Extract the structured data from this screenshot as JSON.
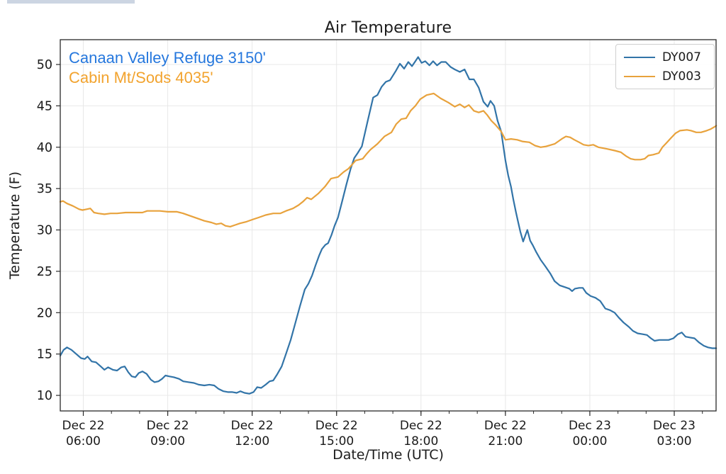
{
  "title": "Air Temperature",
  "axes": {
    "x_label": "Date/Time (UTC)",
    "y_label": "Temperature (F)",
    "x_ticks": [
      {
        "t": 6,
        "date": "Dec 22",
        "time": "06:00"
      },
      {
        "t": 9,
        "date": "Dec 22",
        "time": "09:00"
      },
      {
        "t": 12,
        "date": "Dec 22",
        "time": "12:00"
      },
      {
        "t": 15,
        "date": "Dec 22",
        "time": "15:00"
      },
      {
        "t": 18,
        "date": "Dec 22",
        "time": "18:00"
      },
      {
        "t": 21,
        "date": "Dec 22",
        "time": "21:00"
      },
      {
        "t": 24,
        "date": "Dec 23",
        "time": "00:00"
      },
      {
        "t": 27,
        "date": "Dec 23",
        "time": "03:00"
      }
    ],
    "y_ticks": [
      10,
      15,
      20,
      25,
      30,
      35,
      40,
      45,
      50
    ]
  },
  "annotations": [
    {
      "text": "Canaan Valley Refuge 3150'",
      "color": "#2577dd"
    },
    {
      "text": "Cabin Mt/Sods 4035'",
      "color": "#f2a32e"
    }
  ],
  "legend": {
    "entries": [
      {
        "label": "DY007",
        "color": "#3274a8"
      },
      {
        "label": "DY003",
        "color": "#e8a23c"
      }
    ]
  },
  "colors": {
    "grid": "#e8e8e8",
    "spine": "#2a2a2a",
    "tick_text": "#1a1a1a"
  },
  "chart_data": {
    "type": "line",
    "title": "Air Temperature",
    "xlabel": "Date/Time (UTC)",
    "ylabel": "Temperature (F)",
    "x_unit": "hours since Dec 22 00:00 UTC",
    "xlim": [
      5.181,
      28.486
    ],
    "ylim": [
      8.12,
      53.0
    ],
    "grid": true,
    "legend_position": "upper right",
    "x_minor_tick_step_hours": 1,
    "series": [
      {
        "name": "DY007",
        "station": "Canaan Valley Refuge 3150'",
        "color": "#3274a8",
        "points": [
          [
            5.18,
            14.8
          ],
          [
            5.3,
            15.5
          ],
          [
            5.42,
            15.8
          ],
          [
            5.58,
            15.5
          ],
          [
            5.75,
            15.0
          ],
          [
            5.92,
            14.5
          ],
          [
            6.05,
            14.4
          ],
          [
            6.15,
            14.7
          ],
          [
            6.3,
            14.1
          ],
          [
            6.45,
            14.0
          ],
          [
            6.62,
            13.5
          ],
          [
            6.75,
            13.1
          ],
          [
            6.88,
            13.4
          ],
          [
            7.05,
            13.1
          ],
          [
            7.2,
            13.0
          ],
          [
            7.35,
            13.4
          ],
          [
            7.47,
            13.5
          ],
          [
            7.6,
            12.8
          ],
          [
            7.72,
            12.3
          ],
          [
            7.85,
            12.2
          ],
          [
            7.97,
            12.7
          ],
          [
            8.1,
            12.9
          ],
          [
            8.25,
            12.6
          ],
          [
            8.4,
            11.9
          ],
          [
            8.53,
            11.6
          ],
          [
            8.67,
            11.7
          ],
          [
            8.8,
            12.0
          ],
          [
            8.92,
            12.4
          ],
          [
            9.05,
            12.3
          ],
          [
            9.22,
            12.2
          ],
          [
            9.4,
            12.0
          ],
          [
            9.55,
            11.7
          ],
          [
            9.75,
            11.6
          ],
          [
            9.93,
            11.5
          ],
          [
            10.1,
            11.3
          ],
          [
            10.3,
            11.2
          ],
          [
            10.48,
            11.3
          ],
          [
            10.65,
            11.2
          ],
          [
            10.8,
            10.8
          ],
          [
            10.98,
            10.5
          ],
          [
            11.15,
            10.4
          ],
          [
            11.3,
            10.4
          ],
          [
            11.45,
            10.3
          ],
          [
            11.58,
            10.5
          ],
          [
            11.73,
            10.3
          ],
          [
            11.9,
            10.2
          ],
          [
            12.05,
            10.4
          ],
          [
            12.18,
            11.0
          ],
          [
            12.32,
            10.9
          ],
          [
            12.48,
            11.3
          ],
          [
            12.62,
            11.7
          ],
          [
            12.75,
            11.8
          ],
          [
            12.88,
            12.5
          ],
          [
            13.05,
            13.5
          ],
          [
            13.2,
            15.0
          ],
          [
            13.37,
            16.7
          ],
          [
            13.53,
            18.7
          ],
          [
            13.7,
            20.8
          ],
          [
            13.87,
            22.8
          ],
          [
            14.0,
            23.5
          ],
          [
            14.13,
            24.5
          ],
          [
            14.25,
            25.7
          ],
          [
            14.38,
            26.9
          ],
          [
            14.48,
            27.7
          ],
          [
            14.6,
            28.2
          ],
          [
            14.7,
            28.4
          ],
          [
            14.82,
            29.4
          ],
          [
            14.93,
            30.5
          ],
          [
            15.05,
            31.5
          ],
          [
            15.2,
            33.5
          ],
          [
            15.35,
            35.5
          ],
          [
            15.5,
            37.4
          ],
          [
            15.63,
            38.7
          ],
          [
            15.75,
            39.3
          ],
          [
            15.9,
            40.1
          ],
          [
            16.1,
            43.1
          ],
          [
            16.3,
            46.0
          ],
          [
            16.45,
            46.3
          ],
          [
            16.6,
            47.3
          ],
          [
            16.75,
            47.9
          ],
          [
            16.9,
            48.1
          ],
          [
            17.1,
            49.2
          ],
          [
            17.25,
            50.1
          ],
          [
            17.4,
            49.5
          ],
          [
            17.55,
            50.3
          ],
          [
            17.68,
            49.8
          ],
          [
            17.8,
            50.4
          ],
          [
            17.9,
            50.9
          ],
          [
            18.02,
            50.2
          ],
          [
            18.15,
            50.4
          ],
          [
            18.3,
            49.9
          ],
          [
            18.43,
            50.4
          ],
          [
            18.57,
            49.9
          ],
          [
            18.72,
            50.3
          ],
          [
            18.88,
            50.3
          ],
          [
            19.05,
            49.7
          ],
          [
            19.2,
            49.4
          ],
          [
            19.38,
            49.1
          ],
          [
            19.55,
            49.4
          ],
          [
            19.72,
            48.2
          ],
          [
            19.88,
            48.2
          ],
          [
            20.05,
            47.2
          ],
          [
            20.22,
            45.5
          ],
          [
            20.37,
            44.9
          ],
          [
            20.47,
            45.6
          ],
          [
            20.6,
            45.0
          ],
          [
            20.72,
            43.2
          ],
          [
            20.85,
            41.9
          ],
          [
            21.0,
            38.4
          ],
          [
            21.1,
            36.6
          ],
          [
            21.2,
            35.2
          ],
          [
            21.28,
            33.7
          ],
          [
            21.37,
            32.2
          ],
          [
            21.45,
            31.0
          ],
          [
            21.53,
            29.8
          ],
          [
            21.63,
            28.6
          ],
          [
            21.78,
            30.0
          ],
          [
            21.88,
            28.7
          ],
          [
            21.98,
            28.1
          ],
          [
            22.1,
            27.3
          ],
          [
            22.25,
            26.4
          ],
          [
            22.42,
            25.6
          ],
          [
            22.6,
            24.7
          ],
          [
            22.75,
            23.8
          ],
          [
            22.93,
            23.3
          ],
          [
            23.1,
            23.1
          ],
          [
            23.27,
            22.9
          ],
          [
            23.37,
            22.6
          ],
          [
            23.47,
            22.9
          ],
          [
            23.62,
            23.0
          ],
          [
            23.75,
            23.0
          ],
          [
            23.87,
            22.4
          ],
          [
            24.03,
            22.0
          ],
          [
            24.2,
            21.8
          ],
          [
            24.37,
            21.4
          ],
          [
            24.55,
            20.5
          ],
          [
            24.72,
            20.3
          ],
          [
            24.88,
            20.0
          ],
          [
            25.03,
            19.4
          ],
          [
            25.2,
            18.8
          ],
          [
            25.38,
            18.3
          ],
          [
            25.53,
            17.8
          ],
          [
            25.7,
            17.5
          ],
          [
            25.88,
            17.4
          ],
          [
            26.03,
            17.3
          ],
          [
            26.17,
            16.9
          ],
          [
            26.3,
            16.6
          ],
          [
            26.47,
            16.7
          ],
          [
            26.65,
            16.7
          ],
          [
            26.8,
            16.7
          ],
          [
            26.97,
            16.9
          ],
          [
            27.13,
            17.4
          ],
          [
            27.27,
            17.6
          ],
          [
            27.4,
            17.1
          ],
          [
            27.55,
            17.0
          ],
          [
            27.72,
            16.9
          ],
          [
            27.88,
            16.4
          ],
          [
            28.05,
            16.0
          ],
          [
            28.2,
            15.8
          ],
          [
            28.35,
            15.7
          ],
          [
            28.49,
            15.7
          ]
        ]
      },
      {
        "name": "DY003",
        "station": "Cabin Mt/Sods 4035'",
        "color": "#e8a23c",
        "points": [
          [
            5.18,
            33.4
          ],
          [
            5.28,
            33.5
          ],
          [
            5.42,
            33.2
          ],
          [
            5.63,
            32.9
          ],
          [
            5.85,
            32.5
          ],
          [
            5.97,
            32.4
          ],
          [
            6.12,
            32.5
          ],
          [
            6.25,
            32.6
          ],
          [
            6.38,
            32.1
          ],
          [
            6.53,
            32.0
          ],
          [
            6.75,
            31.9
          ],
          [
            6.97,
            32.0
          ],
          [
            7.2,
            32.0
          ],
          [
            7.5,
            32.1
          ],
          [
            7.8,
            32.1
          ],
          [
            8.1,
            32.1
          ],
          [
            8.27,
            32.3
          ],
          [
            8.5,
            32.3
          ],
          [
            8.72,
            32.3
          ],
          [
            9.0,
            32.2
          ],
          [
            9.33,
            32.2
          ],
          [
            9.55,
            32.0
          ],
          [
            9.8,
            31.7
          ],
          [
            10.05,
            31.4
          ],
          [
            10.3,
            31.1
          ],
          [
            10.55,
            30.9
          ],
          [
            10.73,
            30.7
          ],
          [
            10.9,
            30.8
          ],
          [
            11.05,
            30.5
          ],
          [
            11.22,
            30.4
          ],
          [
            11.4,
            30.6
          ],
          [
            11.57,
            30.8
          ],
          [
            11.8,
            31.0
          ],
          [
            12.05,
            31.3
          ],
          [
            12.23,
            31.5
          ],
          [
            12.48,
            31.8
          ],
          [
            12.75,
            32.0
          ],
          [
            13.0,
            32.0
          ],
          [
            13.2,
            32.3
          ],
          [
            13.45,
            32.6
          ],
          [
            13.65,
            33.0
          ],
          [
            13.8,
            33.4
          ],
          [
            13.95,
            33.9
          ],
          [
            14.1,
            33.7
          ],
          [
            14.35,
            34.4
          ],
          [
            14.6,
            35.3
          ],
          [
            14.8,
            36.2
          ],
          [
            15.05,
            36.4
          ],
          [
            15.25,
            37.0
          ],
          [
            15.42,
            37.4
          ],
          [
            15.55,
            37.9
          ],
          [
            15.68,
            38.4
          ],
          [
            15.93,
            38.6
          ],
          [
            16.07,
            39.2
          ],
          [
            16.2,
            39.7
          ],
          [
            16.45,
            40.4
          ],
          [
            16.7,
            41.3
          ],
          [
            16.95,
            41.8
          ],
          [
            17.12,
            42.8
          ],
          [
            17.3,
            43.4
          ],
          [
            17.47,
            43.5
          ],
          [
            17.63,
            44.4
          ],
          [
            17.8,
            45.0
          ],
          [
            17.97,
            45.8
          ],
          [
            18.2,
            46.3
          ],
          [
            18.45,
            46.5
          ],
          [
            18.7,
            45.9
          ],
          [
            18.97,
            45.4
          ],
          [
            19.2,
            44.9
          ],
          [
            19.38,
            45.2
          ],
          [
            19.55,
            44.8
          ],
          [
            19.7,
            45.1
          ],
          [
            19.88,
            44.4
          ],
          [
            20.05,
            44.2
          ],
          [
            20.22,
            44.4
          ],
          [
            20.35,
            43.9
          ],
          [
            20.5,
            43.2
          ],
          [
            20.65,
            42.7
          ],
          [
            20.85,
            41.9
          ],
          [
            21.0,
            40.9
          ],
          [
            21.2,
            41.0
          ],
          [
            21.42,
            40.9
          ],
          [
            21.6,
            40.7
          ],
          [
            21.85,
            40.6
          ],
          [
            22.05,
            40.2
          ],
          [
            22.25,
            40.0
          ],
          [
            22.45,
            40.1
          ],
          [
            22.75,
            40.4
          ],
          [
            23.0,
            41.0
          ],
          [
            23.15,
            41.3
          ],
          [
            23.3,
            41.2
          ],
          [
            23.45,
            40.9
          ],
          [
            23.62,
            40.6
          ],
          [
            23.78,
            40.3
          ],
          [
            23.95,
            40.2
          ],
          [
            24.12,
            40.3
          ],
          [
            24.3,
            40.0
          ],
          [
            24.6,
            39.8
          ],
          [
            24.88,
            39.6
          ],
          [
            25.1,
            39.4
          ],
          [
            25.3,
            38.9
          ],
          [
            25.45,
            38.6
          ],
          [
            25.6,
            38.5
          ],
          [
            25.8,
            38.5
          ],
          [
            25.95,
            38.6
          ],
          [
            26.08,
            39.0
          ],
          [
            26.25,
            39.1
          ],
          [
            26.45,
            39.3
          ],
          [
            26.58,
            40.0
          ],
          [
            26.72,
            40.5
          ],
          [
            26.88,
            41.1
          ],
          [
            27.05,
            41.7
          ],
          [
            27.2,
            42.0
          ],
          [
            27.45,
            42.1
          ],
          [
            27.6,
            42.0
          ],
          [
            27.78,
            41.8
          ],
          [
            27.95,
            41.8
          ],
          [
            28.15,
            42.0
          ],
          [
            28.3,
            42.2
          ],
          [
            28.45,
            42.5
          ],
          [
            28.49,
            42.6
          ]
        ]
      }
    ]
  }
}
